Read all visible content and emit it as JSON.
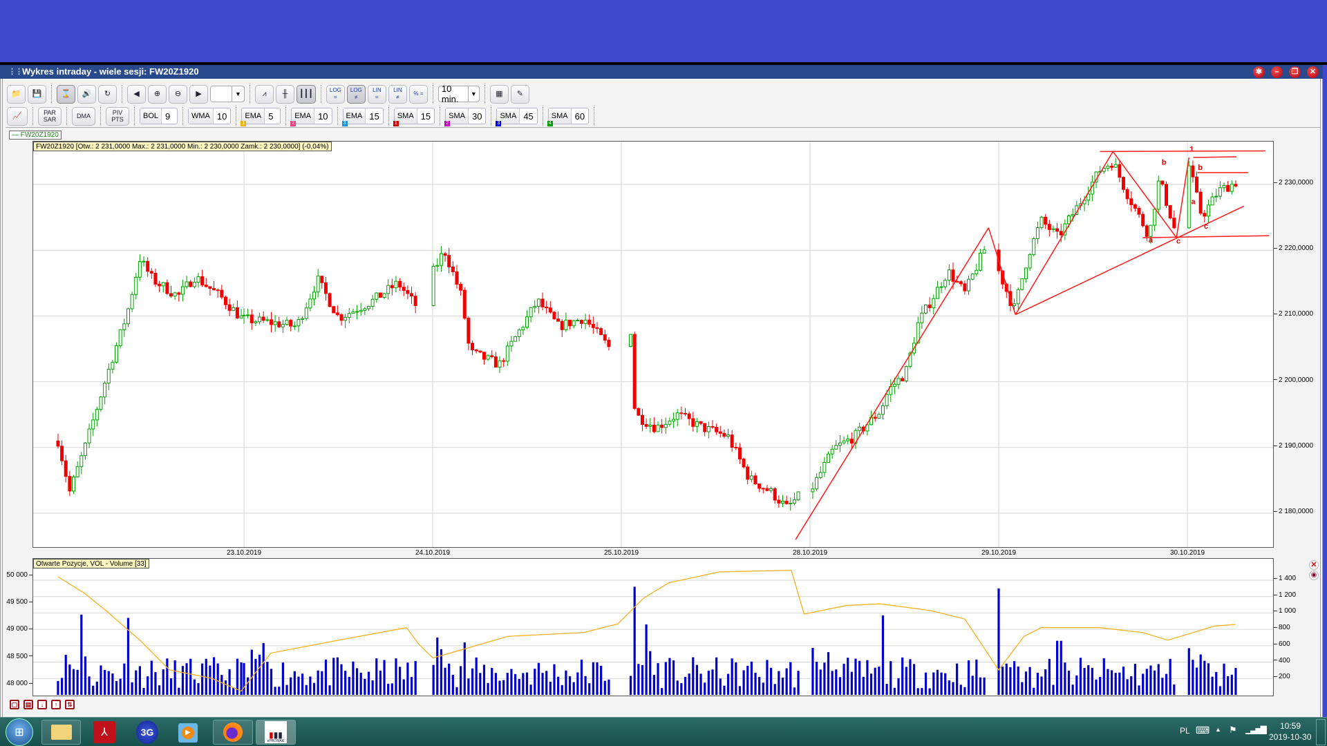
{
  "window": {
    "title": "Wykres intraday -  wiele sesji: FW20Z1920",
    "controls": [
      "settings",
      "minimize",
      "restore",
      "close"
    ]
  },
  "toolbar": {
    "row1": [
      {
        "icon": "folder-open-icon"
      },
      {
        "icon": "save-icon"
      },
      {
        "sep": true
      },
      {
        "icon": "hourglass-icon",
        "on": true
      },
      {
        "icon": "speaker-icon"
      },
      {
        "icon": "refresh-icon"
      },
      {
        "sep": true
      },
      {
        "icon": "arrow-left-icon"
      },
      {
        "icon": "zoom-in-icon"
      },
      {
        "icon": "zoom-out-icon"
      },
      {
        "icon": "arrow-right-icon"
      },
      {
        "select": "",
        "name": "range-select"
      },
      {
        "sep": true
      },
      {
        "icon": "line-chart-icon"
      },
      {
        "icon": "ohlc-bars-icon"
      },
      {
        "icon": "candlestick-icon",
        "on": true
      },
      {
        "sep": true
      },
      {
        "label": "LOG =",
        "icon": "log-equal-icon"
      },
      {
        "label": "LOG ≠",
        "icon": "log-notequal-icon",
        "on": true
      },
      {
        "label": "LIN =",
        "icon": "lin-equal-icon"
      },
      {
        "label": "LIN ≠",
        "icon": "lin-notequal-icon"
      },
      {
        "label": "% =",
        "icon": "percent-equal-icon"
      },
      {
        "sep": true
      },
      {
        "select": "10 min.",
        "name": "interval-select"
      },
      {
        "sep": true
      },
      {
        "icon": "color-palette-icon"
      },
      {
        "icon": "edit-note-icon"
      }
    ],
    "row2": {
      "buttons": [
        {
          "icon": "indicator-chart-icon"
        },
        {
          "label": "PAR SAR"
        },
        {
          "label": "DMA"
        },
        {
          "label": "PIV PTS"
        }
      ],
      "indicators": [
        {
          "name": "BOL",
          "value": "9"
        },
        {
          "name": "WMA",
          "value": "10"
        },
        {
          "name": "EMA",
          "value": "5",
          "badge": "1",
          "color": "#f0b400"
        },
        {
          "name": "EMA",
          "value": "10",
          "badge": "2",
          "color": "#f04080"
        },
        {
          "name": "EMA",
          "value": "15",
          "badge": "3",
          "color": "#1a90e0"
        },
        {
          "name": "SMA",
          "value": "15",
          "badge": "1",
          "color": "#d00000"
        },
        {
          "name": "SMA",
          "value": "30",
          "badge": "2",
          "color": "#c000c0"
        },
        {
          "name": "SMA",
          "value": "45",
          "badge": "3",
          "color": "#0000e0"
        },
        {
          "name": "SMA",
          "value": "60",
          "badge": "4",
          "color": "#00a000"
        }
      ]
    }
  },
  "legend": {
    "label": "— FW20Z1920"
  },
  "main_info": "FW20Z1920 [Otw.: 2 231,0000  Max.: 2 231,0000  Min.: 2 230,0000  Zamk.: 2 230,0000] (-0,04%)",
  "volume_info": "Otwarte Pozycje, VOL - Volume [33]",
  "colors": {
    "up": "#00a000",
    "down": "#f00000",
    "trend": "#ff1a1a",
    "oi_line": "#f5b21e",
    "volume": "#0000cc",
    "grid": "#d6d6d6"
  },
  "chart_data": [
    {
      "type": "candlestick",
      "interval": "10 min.",
      "symbol": "FW20Z1920",
      "x_tick_labels": [
        "23.10.2019",
        "24.10.2019",
        "25.10.2019",
        "28.10.2019",
        "29.10.2019",
        "30.10.2019"
      ],
      "y_tick_labels": [
        "2 230,0000",
        "2 220,0000",
        "2 210,0000",
        "2 200,0000",
        "2 190,0000",
        "2 180,0000"
      ],
      "y_ticks": [
        2230,
        2220,
        2210,
        2200,
        2190,
        2180
      ],
      "ylim": [
        2172.8,
        2236.5
      ],
      "grid": true,
      "close_path": [
        [
          "22.10 08:52",
          2191
        ],
        [
          "22.10 09:22",
          2183.3
        ],
        [
          "22.10 10:01",
          2190
        ],
        [
          "22.10 11:06",
          2202.6
        ],
        [
          "22.10 11:49",
          2210.3
        ],
        [
          "22.10 12:22",
          2218.7
        ],
        [
          "22.10 12:55",
          2215.5
        ],
        [
          "22.10 14:00",
          2213
        ],
        [
          "22.10 14:43",
          2216
        ],
        [
          "22.10 15:48",
          2213
        ],
        [
          "22.10 16:42",
          2209.7
        ],
        [
          "23.10 08:45",
          2209.5
        ],
        [
          "23.10 09:54",
          2209
        ],
        [
          "23.10 11:00",
          2208.4
        ],
        [
          "23.10 11:54",
          2215.5
        ],
        [
          "23.10 12:48",
          2209.7
        ],
        [
          "23.10 14:15",
          2212.3
        ],
        [
          "23.10 15:20",
          2215
        ],
        [
          "23.10 16:14",
          2211
        ],
        [
          "24.10 08:47",
          2216.8
        ],
        [
          "24.10 09:15",
          2220
        ],
        [
          "24.10 09:59",
          2213
        ],
        [
          "24.10 10:20",
          2204.5
        ],
        [
          "24.10 11:36",
          2202.6
        ],
        [
          "24.10 12:20",
          2207
        ],
        [
          "24.10 13:14",
          2212.3
        ],
        [
          "24.10 14:08",
          2208.4
        ],
        [
          "24.10 15:13",
          2209.7
        ],
        [
          "24.10 16:18",
          2205.2
        ],
        [
          "25.10 09:09",
          2207.8
        ],
        [
          "25.10 09:20",
          2195
        ],
        [
          "25.10 10:14",
          2193
        ],
        [
          "25.10 11:08",
          2195
        ],
        [
          "25.10 12:13",
          2193
        ],
        [
          "25.10 13:18",
          2191.7
        ],
        [
          "25.10 14:13",
          2185.3
        ],
        [
          "25.10 15:07",
          2183.3
        ],
        [
          "25.10 15:50",
          2180.8
        ],
        [
          "25.10 16:23",
          2182.7
        ],
        [
          "28.10 08:52",
          2184
        ],
        [
          "28.10 09:46",
          2189.8
        ],
        [
          "28.10 10:40",
          2191.7
        ],
        [
          "28.10 11:45",
          2195.5
        ],
        [
          "28.10 12:07",
          2198.8
        ],
        [
          "28.10 12:50",
          2201.3
        ],
        [
          "28.10 13:23",
          2209
        ],
        [
          "28.10 14:39",
          2216.8
        ],
        [
          "28.10 15:22",
          2213.5
        ],
        [
          "28.10 16:16",
          2220.6
        ],
        [
          "29.10 08:45",
          2216.8
        ],
        [
          "29.10 09:24",
          2211
        ],
        [
          "29.10 10:01",
          2219.3
        ],
        [
          "29.10 10:34",
          2224.5
        ],
        [
          "29.10 11:17",
          2222
        ],
        [
          "29.10 12:11",
          2227
        ],
        [
          "29.10 13:05",
          2232.2
        ],
        [
          "29.10 13:38",
          2233.5
        ],
        [
          "29.10 14:11",
          2229
        ],
        [
          "29.10 15:11",
          2222.2
        ],
        [
          "29.10 15:37",
          2230.9
        ],
        [
          "29.10 16:21",
          2222.2
        ],
        [
          "30.10 08:49",
          2232.8
        ],
        [
          "30.10 09:22",
          2225.1
        ],
        [
          "30.10 10:05",
          2229
        ],
        [
          "30.10 10:49",
          2230.3
        ]
      ],
      "trend_lines": [
        [
          [
            "25.10 16:12",
            2176
          ],
          [
            "28.10 16:23",
            2223.4
          ]
        ],
        [
          [
            "28.10 16:23",
            2223.4
          ],
          [
            "29.10 09:28",
            2210.2
          ]
        ],
        [
          [
            "29.10 09:28",
            2210.2
          ],
          [
            "29.10 13:38",
            2235
          ]
        ],
        [
          [
            "29.10 13:38",
            2235
          ],
          [
            "29.10 16:21",
            2221.9
          ]
        ],
        [
          [
            "29.10 16:21",
            2221.9
          ],
          [
            "30.10 08:49",
            2234.1
          ]
        ],
        [
          [
            "29.10 09:28",
            2210.2
          ],
          [
            "30.10 11:10",
            2226.7
          ]
        ],
        [
          [
            "29.10 13:05",
            2235
          ],
          [
            "30.10 12:05",
            2235.1
          ]
        ],
        [
          [
            "29.10 14:54",
            2221.9
          ],
          [
            "30.10 12:15",
            2222.2
          ]
        ],
        [
          [
            "30.10 09:00",
            2234.1
          ],
          [
            "30.10 10:51",
            2234.2
          ]
        ],
        [
          [
            "30.10 09:11",
            2231.8
          ],
          [
            "30.10 11:21",
            2231.8
          ]
        ]
      ],
      "wave_labels": [
        {
          "text": "a",
          "at": [
            "29.10 15:15",
            2221.2
          ]
        },
        {
          "text": "b",
          "at": [
            "29.10 15:49",
            2233
          ]
        },
        {
          "text": "c",
          "at": [
            "29.10 16:26",
            2221
          ]
        },
        {
          "text": "1",
          "at": [
            "30.10 08:56",
            2235
          ]
        },
        {
          "text": "b",
          "at": [
            "30.10 09:18",
            2232.2
          ]
        },
        {
          "text": "a",
          "at": [
            "30.10 09:00",
            2227
          ]
        },
        {
          "text": "c",
          "at": [
            "30.10 09:33",
            2223.3
          ]
        }
      ]
    },
    {
      "type": "bar+line",
      "title": "Otwarte Pozycje, VOL - Volume [33]",
      "left_axis": {
        "label": "Otwarte Pozycje",
        "ticks": [
          50000,
          49500,
          49000,
          48500,
          48000
        ],
        "tick_labels": [
          "50 000",
          "49 500",
          "49 000",
          "48 500",
          "48 000"
        ]
      },
      "right_axis": {
        "label": "Volume",
        "ticks": [
          1400,
          1200,
          1000,
          800,
          600,
          400,
          200
        ],
        "tick_labels": [
          "1 400",
          "1 200",
          "1 000",
          "800",
          "600",
          "400",
          "200"
        ]
      },
      "open_interest": [
        [
          "22.10 08:52",
          50000
        ],
        [
          "22.10 10:01",
          49690
        ],
        [
          "22.10 10:55",
          49375
        ],
        [
          "22.10 12:22",
          48830
        ],
        [
          "22.10 13:38",
          48280
        ],
        [
          "22.10 15:26",
          48125
        ],
        [
          "22.10 16:42",
          47890
        ],
        [
          "23.10 09:54",
          48590
        ],
        [
          "23.10 12:48",
          48830
        ],
        [
          "23.10 15:42",
          49060
        ],
        [
          "23.10 16:14",
          48750
        ],
        [
          "23.10 16:50",
          48500
        ],
        [
          "24.10 11:58",
          48900
        ],
        [
          "24.10 15:13",
          48970
        ],
        [
          "24.10 16:40",
          49130
        ],
        [
          "25.10 09:41",
          49600
        ],
        [
          "25.10 10:47",
          49890
        ],
        [
          "25.10 12:57",
          50090
        ],
        [
          "25.10 16:01",
          50120
        ],
        [
          "25.10 16:34",
          49310
        ],
        [
          "28.10 10:18",
          49470
        ],
        [
          "28.10 11:45",
          49500
        ],
        [
          "28.10 13:55",
          49375
        ],
        [
          "28.10 15:22",
          49220
        ],
        [
          "29.10 08:45",
          48280
        ],
        [
          "29.10 09:50",
          48900
        ],
        [
          "29.10 10:34",
          49060
        ],
        [
          "29.10 13:05",
          49060
        ],
        [
          "29.10 14:54",
          48970
        ],
        [
          "29.10 15:59",
          48830
        ],
        [
          "30.10 09:00",
          48970
        ],
        [
          "30.10 09:54",
          49090
        ],
        [
          "30.10 10:49",
          49120
        ]
      ],
      "volume_peaks": [
        [
          "22.10 09:50",
          980
        ],
        [
          "22.10 11:55",
          940
        ],
        [
          "24.10 09:00",
          700
        ],
        [
          "24.10 10:10",
          640
        ],
        [
          "25.10 09:20",
          1320
        ],
        [
          "25.10 09:50",
          860
        ],
        [
          "28.10 08:45",
          1560
        ],
        [
          "28.10 11:50",
          970
        ],
        [
          "29.10 08:45",
          1300
        ],
        [
          "29.10 11:20",
          660
        ],
        [
          "30.10 08:50",
          570
        ]
      ]
    }
  ],
  "bottom_icons": [
    "window-frame-icon",
    "print-icon",
    "download-icon",
    "upload-icon",
    "layout-icon"
  ],
  "taskbar": {
    "apps": [
      "start-orb-icon",
      "file-explorer-icon",
      "acrobat-icon",
      "3g-modem-icon",
      "media-player-icon",
      "firefox-icon",
      "epromak-icon"
    ],
    "epromak_label": "ePROMAK",
    "lang": "PL",
    "time": "10:59",
    "date": "2019-10-30"
  }
}
